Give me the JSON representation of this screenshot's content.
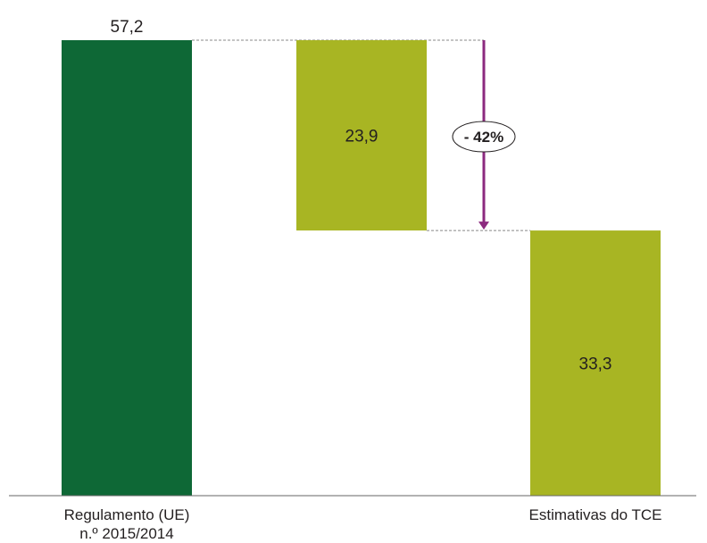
{
  "chart_data": {
    "type": "bar",
    "subtype": "waterfall",
    "title": "",
    "xlabel": "",
    "ylabel": "",
    "ylim": [
      0,
      57.2
    ],
    "grid": false,
    "legend": "none",
    "bars": [
      {
        "category_lines": [
          "Regulamento (UE)",
          "n.º 2015/2014"
        ],
        "start": 0,
        "end": 57.2,
        "label": "57,2",
        "label_position": "above",
        "color": "#0e6836"
      },
      {
        "category_lines": [],
        "start": 33.3,
        "end": 57.2,
        "label": "23,9",
        "label_position": "inside",
        "color": "#a8b523"
      },
      {
        "category_lines": [
          "Estimativas do TCE"
        ],
        "start": 0,
        "end": 33.3,
        "label": "33,3",
        "label_position": "inside",
        "color": "#a8b523"
      }
    ],
    "annotation": {
      "text": "- 42%",
      "from_value": 57.2,
      "to_value": 33.3,
      "color": "#8c2a7f"
    },
    "connector_color": "#888888",
    "axis_color": "#666666"
  }
}
